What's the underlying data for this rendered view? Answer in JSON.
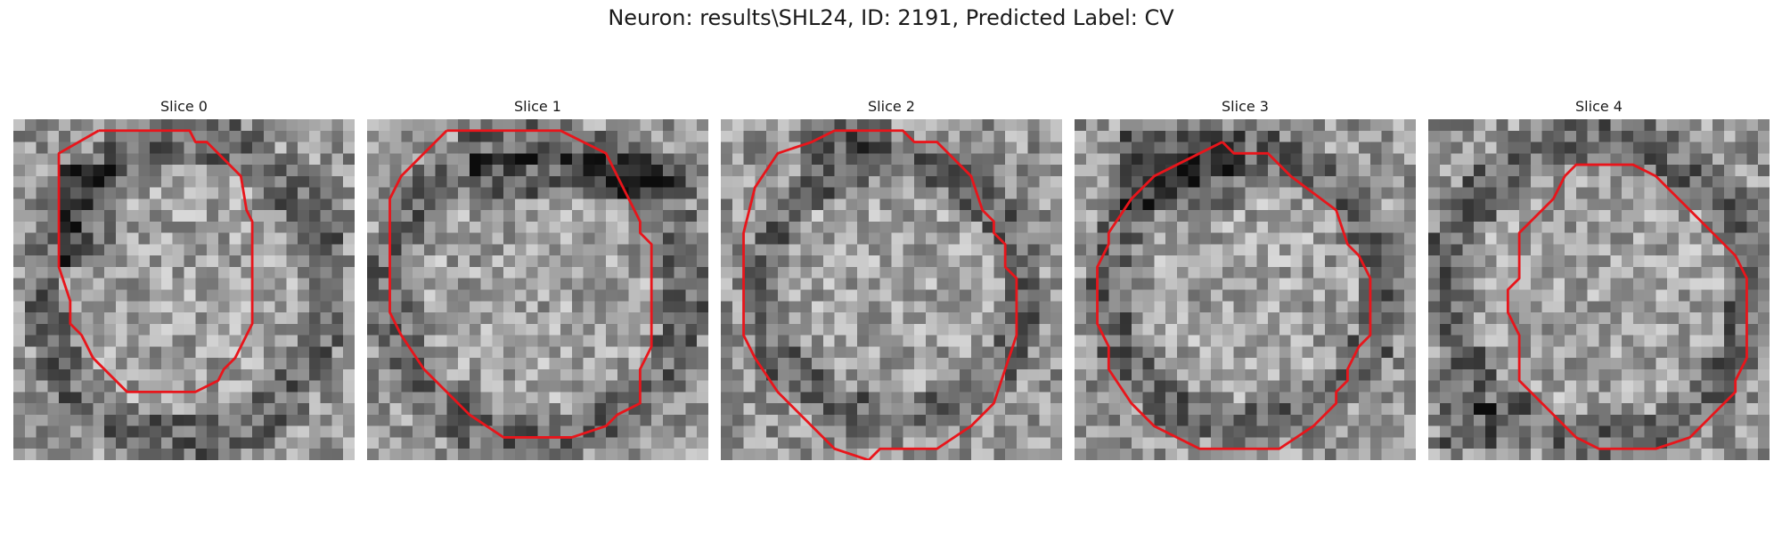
{
  "figure": {
    "title": "Neuron: results\\SHL24, ID: 2191, Predicted Label: CV"
  },
  "contour_color": "#e8151b",
  "colormap": "gray",
  "slices": [
    {
      "title": "Slice 0"
    },
    {
      "title": "Slice 1"
    },
    {
      "title": "Slice 2"
    },
    {
      "title": "Slice 3"
    },
    {
      "title": "Slice 4"
    }
  ]
}
